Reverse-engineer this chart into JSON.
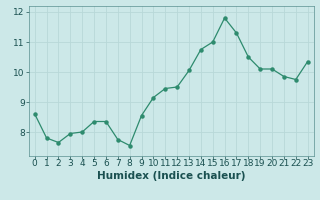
{
  "x": [
    0,
    1,
    2,
    3,
    4,
    5,
    6,
    7,
    8,
    9,
    10,
    11,
    12,
    13,
    14,
    15,
    16,
    17,
    18,
    19,
    20,
    21,
    22,
    23
  ],
  "y": [
    8.6,
    7.8,
    7.65,
    7.95,
    8.0,
    8.35,
    8.35,
    7.75,
    7.55,
    8.55,
    9.15,
    9.45,
    9.5,
    10.05,
    10.75,
    11.0,
    11.8,
    11.3,
    10.5,
    10.1,
    10.1,
    9.85,
    9.75,
    10.35
  ],
  "line_color": "#2e8b6e",
  "bg_color": "#cce8e8",
  "grid_color": "#b8d8d8",
  "xlabel": "Humidex (Indice chaleur)",
  "xlim": [
    -0.5,
    23.5
  ],
  "ylim": [
    7.2,
    12.2
  ],
  "yticks": [
    8,
    9,
    10,
    11,
    12
  ],
  "xticks": [
    0,
    1,
    2,
    3,
    4,
    5,
    6,
    7,
    8,
    9,
    10,
    11,
    12,
    13,
    14,
    15,
    16,
    17,
    18,
    19,
    20,
    21,
    22,
    23
  ],
  "tick_fontsize": 6.5,
  "xlabel_fontsize": 7.5
}
